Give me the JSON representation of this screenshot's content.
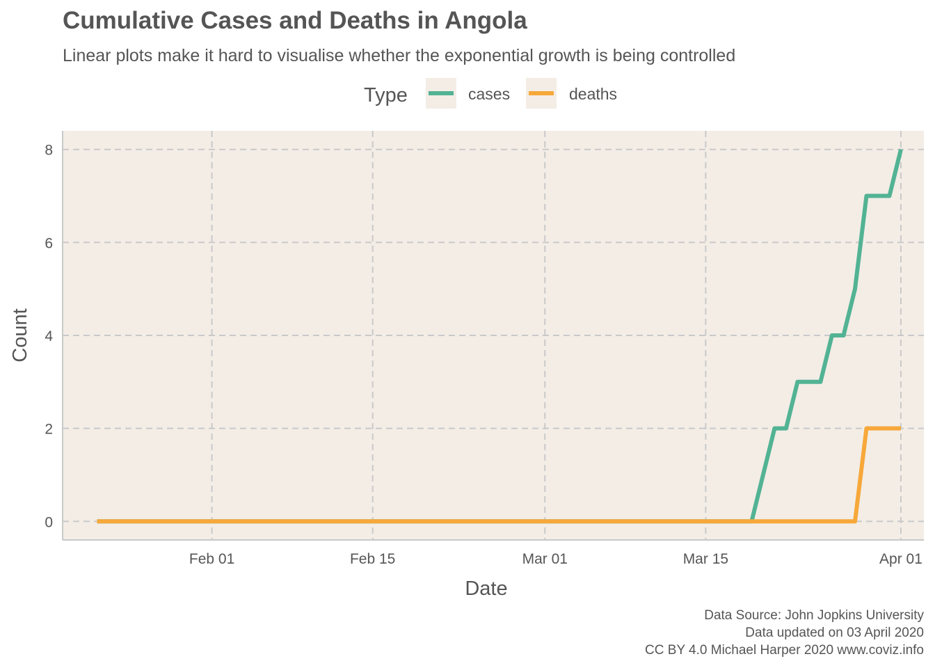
{
  "title": "Cumulative Cases and Deaths in Angola",
  "subtitle": "Linear plots make it hard to visualise whether the exponential growth is being controlled",
  "caption": [
    "Data Source: John Jopkins University",
    "Data updated on 03 April 2020",
    "CC BY 4.0 Michael Harper 2020 www.coviz.info"
  ],
  "colors": {
    "cases": "#52B394",
    "deaths": "#F7A83A",
    "panel_bg": "#F3EDE6",
    "grid": "#C9C9C9",
    "axis_line": "#C9C9C9"
  },
  "chart_data": {
    "type": "line",
    "xlabel": "Date",
    "ylabel": "Count",
    "xlim": [
      "2020-01-19",
      "2020-04-03"
    ],
    "ylim": [
      -0.4,
      8.4
    ],
    "x_ticks": [
      "2020-02-01",
      "2020-02-15",
      "2020-03-01",
      "2020-03-15",
      "2020-04-01"
    ],
    "x_tick_labels": [
      "Feb 01",
      "Feb 15",
      "Mar 01",
      "Mar 15",
      "Apr 01"
    ],
    "y_ticks": [
      0,
      2,
      4,
      6,
      8
    ],
    "grid": true,
    "legend_title": "Type",
    "legend_position": "top",
    "series": [
      {
        "name": "cases",
        "points": [
          [
            "2020-01-22",
            0
          ],
          [
            "2020-03-19",
            0
          ],
          [
            "2020-03-21",
            2
          ],
          [
            "2020-03-22",
            2
          ],
          [
            "2020-03-23",
            3
          ],
          [
            "2020-03-25",
            3
          ],
          [
            "2020-03-26",
            4
          ],
          [
            "2020-03-27",
            4
          ],
          [
            "2020-03-28",
            5
          ],
          [
            "2020-03-29",
            7
          ],
          [
            "2020-03-31",
            7
          ],
          [
            "2020-04-01",
            8
          ]
        ]
      },
      {
        "name": "deaths",
        "points": [
          [
            "2020-01-22",
            0
          ],
          [
            "2020-03-28",
            0
          ],
          [
            "2020-03-29",
            2
          ],
          [
            "2020-04-01",
            2
          ]
        ]
      }
    ]
  }
}
